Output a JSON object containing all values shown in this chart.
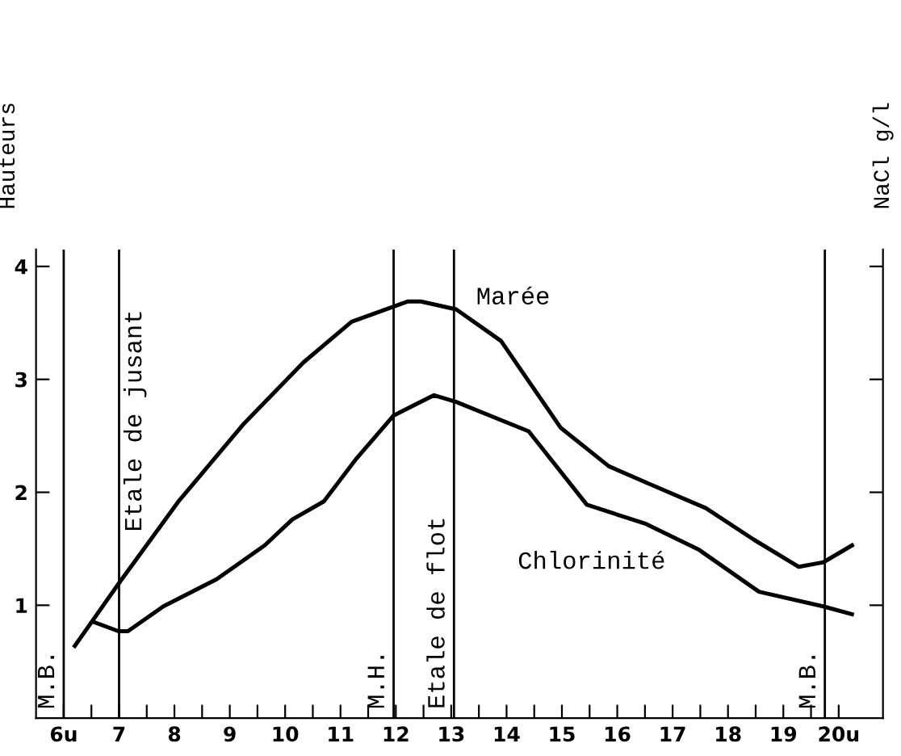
{
  "chart_data": {
    "type": "line",
    "ylabel": "Hauteurs",
    "y2label": "NaCl g/l",
    "xlim": [
      5.5,
      20.8
    ],
    "ylim": [
      0,
      4.15
    ],
    "xticks": [
      {
        "value": 6,
        "label": "6u"
      },
      {
        "value": 6.5,
        "label": null
      },
      7,
      {
        "value": 7.5,
        "label": null
      },
      8,
      {
        "value": 8.5,
        "label": null
      },
      9,
      {
        "value": 9.5,
        "label": null
      },
      10,
      {
        "value": 10.5,
        "label": null
      },
      11,
      {
        "value": 11.5,
        "label": null
      },
      12,
      {
        "value": 12.5,
        "label": null
      },
      13,
      {
        "value": 13.5,
        "label": null
      },
      14,
      {
        "value": 14.5,
        "label": null
      },
      15,
      {
        "value": 15.5,
        "label": null
      },
      16,
      {
        "value": 16.5,
        "label": null
      },
      17,
      {
        "value": 17.5,
        "label": null
      },
      18,
      {
        "value": 18.5,
        "label": null
      },
      19,
      {
        "value": 19.5,
        "label": null
      },
      {
        "value": 20,
        "label": "20u"
      }
    ],
    "yticks": [
      1,
      2,
      3,
      4
    ],
    "grid": false,
    "legend": false,
    "marker": "none",
    "line_style": "solid",
    "series": [
      {
        "name": "Marée",
        "color": "#000000",
        "x": [
          6.2,
          6.99,
          8.09,
          9.26,
          10.33,
          11.2,
          12.22,
          12.45,
          13.09,
          13.9,
          14.98,
          15.85,
          16.6,
          17.6,
          18.47,
          19.28,
          19.72,
          20.24
        ],
        "values": [
          0.64,
          1.19,
          1.93,
          2.61,
          3.15,
          3.51,
          3.69,
          3.69,
          3.62,
          3.34,
          2.57,
          2.23,
          2.07,
          1.86,
          1.58,
          1.34,
          1.38,
          1.53
        ]
      },
      {
        "name": "Chlorinité",
        "color": "#000000",
        "x": [
          6.55,
          6.99,
          7.16,
          7.8,
          8.76,
          9.63,
          10.13,
          10.7,
          11.29,
          11.96,
          12.69,
          13.09,
          14.4,
          15.45,
          16.52,
          17.48,
          18.56,
          19.72,
          20.24
        ],
        "values": [
          0.85,
          0.77,
          0.77,
          0.99,
          1.23,
          1.53,
          1.76,
          1.92,
          2.3,
          2.68,
          2.86,
          2.8,
          2.54,
          1.89,
          1.72,
          1.49,
          1.12,
          0.99,
          0.92
        ]
      }
    ],
    "ref_lines": [
      {
        "axis": "x",
        "value": 6.0,
        "label": "M.B."
      },
      {
        "axis": "x",
        "value": 7.0,
        "label": "Etale de jusant"
      },
      {
        "axis": "x",
        "value": 11.96,
        "label": "M.H."
      },
      {
        "axis": "x",
        "value": 13.05,
        "label": "Etale de flot"
      },
      {
        "axis": "x",
        "value": 19.75,
        "label": "M.B."
      }
    ]
  }
}
